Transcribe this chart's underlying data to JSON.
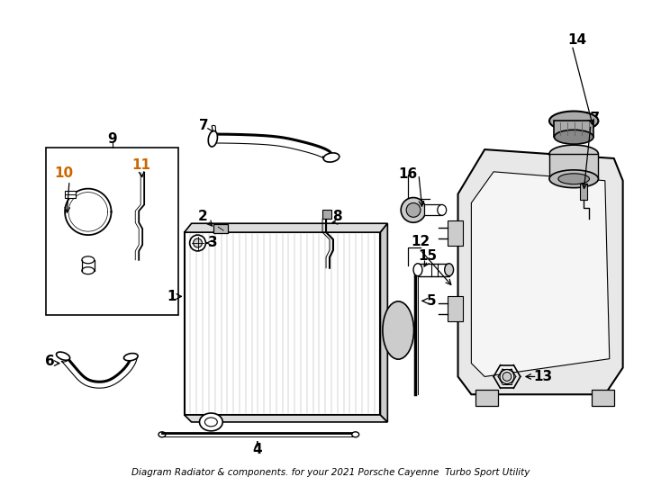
{
  "title": "Diagram Radiator & components. for your 2021 Porsche Cayenne  Turbo Sport Utility",
  "background_color": "#ffffff",
  "line_color": "#000000",
  "label_color_orange": "#cc6600",
  "label_color_black": "#000000",
  "figsize": [
    7.34,
    5.4
  ],
  "dpi": 100
}
